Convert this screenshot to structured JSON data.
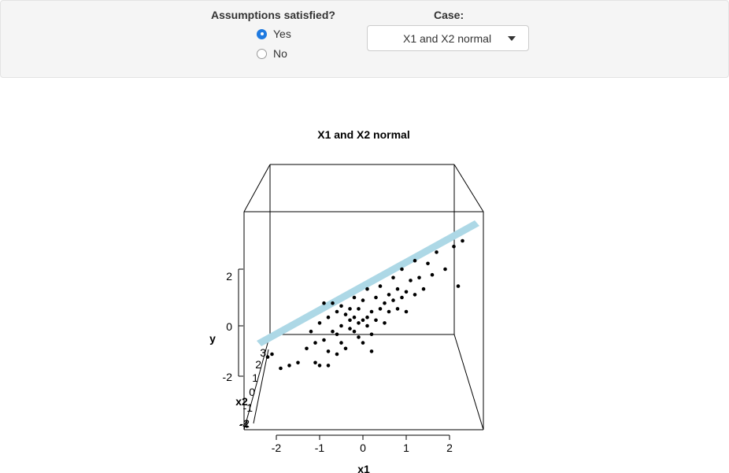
{
  "controls": {
    "assumptions": {
      "label": "Assumptions satisfied?",
      "options": [
        {
          "label": "Yes",
          "selected": true
        },
        {
          "label": "No",
          "selected": false
        }
      ]
    },
    "case": {
      "label": "Case:",
      "selected": "X1 and X2 normal"
    },
    "accent_color": "#1f7ae0"
  },
  "chart_data": {
    "type": "scatter",
    "title": "X1 and X2 normal",
    "xlabel": "x1",
    "ylabel": "y",
    "zlabel": "x2",
    "x_ticks": [
      "-2",
      "-1",
      "0",
      "1",
      "2"
    ],
    "y_ticks": [
      "-2",
      "0",
      "2"
    ],
    "x2_ticks": [
      "-4",
      "-2",
      "-1",
      "0",
      "1",
      "2",
      "3"
    ],
    "surface": "fitted regression plane",
    "surface_color": "#add8e6",
    "point_color": "#000000",
    "points": [
      [
        -2.2,
        -1.1
      ],
      [
        -2.1,
        -1.0
      ],
      [
        -1.9,
        -1.5
      ],
      [
        -1.7,
        -1.4
      ],
      [
        -1.5,
        -1.3
      ],
      [
        -1.3,
        -0.8
      ],
      [
        -1.2,
        -0.2
      ],
      [
        -1.1,
        -0.6
      ],
      [
        -1.1,
        -1.3
      ],
      [
        -1.0,
        -1.4
      ],
      [
        -1.0,
        0.1
      ],
      [
        -0.9,
        -0.5
      ],
      [
        -0.9,
        0.8
      ],
      [
        -0.8,
        0.3
      ],
      [
        -0.8,
        -0.9
      ],
      [
        -0.8,
        -1.4
      ],
      [
        -0.7,
        -0.2
      ],
      [
        -0.7,
        0.8
      ],
      [
        -0.6,
        0.5
      ],
      [
        -0.6,
        -0.3
      ],
      [
        -0.5,
        0.7
      ],
      [
        -0.5,
        0.0
      ],
      [
        -0.5,
        -0.6
      ],
      [
        -0.4,
        -0.8
      ],
      [
        -0.4,
        0.4
      ],
      [
        -0.3,
        0.6
      ],
      [
        -0.3,
        -0.1
      ],
      [
        -0.3,
        0.2
      ],
      [
        -0.2,
        1.0
      ],
      [
        -0.2,
        0.3
      ],
      [
        -0.2,
        -0.2
      ],
      [
        -0.1,
        0.1
      ],
      [
        -0.1,
        0.6
      ],
      [
        -0.1,
        -0.4
      ],
      [
        0.0,
        0.2
      ],
      [
        0.0,
        0.9
      ],
      [
        0.0,
        -0.6
      ],
      [
        0.1,
        0.3
      ],
      [
        0.1,
        1.3
      ],
      [
        0.1,
        0.0
      ],
      [
        0.2,
        0.5
      ],
      [
        0.2,
        -0.3
      ],
      [
        0.3,
        1.0
      ],
      [
        0.3,
        0.2
      ],
      [
        0.4,
        0.6
      ],
      [
        0.4,
        1.4
      ],
      [
        0.5,
        0.8
      ],
      [
        0.5,
        0.1
      ],
      [
        0.6,
        1.1
      ],
      [
        0.6,
        0.5
      ],
      [
        0.7,
        1.7
      ],
      [
        0.7,
        0.9
      ],
      [
        0.8,
        1.3
      ],
      [
        0.8,
        0.6
      ],
      [
        0.9,
        1.0
      ],
      [
        0.9,
        2.0
      ],
      [
        1.0,
        1.2
      ],
      [
        1.0,
        0.5
      ],
      [
        1.1,
        1.6
      ],
      [
        1.2,
        1.1
      ],
      [
        1.2,
        2.3
      ],
      [
        1.3,
        1.7
      ],
      [
        1.4,
        1.3
      ],
      [
        1.5,
        2.2
      ],
      [
        1.6,
        1.8
      ],
      [
        1.7,
        2.6
      ],
      [
        1.9,
        2.0
      ],
      [
        2.1,
        2.8
      ],
      [
        2.3,
        3.0
      ],
      [
        2.2,
        1.4
      ],
      [
        -0.6,
        -1.0
      ],
      [
        0.2,
        -0.9
      ]
    ]
  }
}
